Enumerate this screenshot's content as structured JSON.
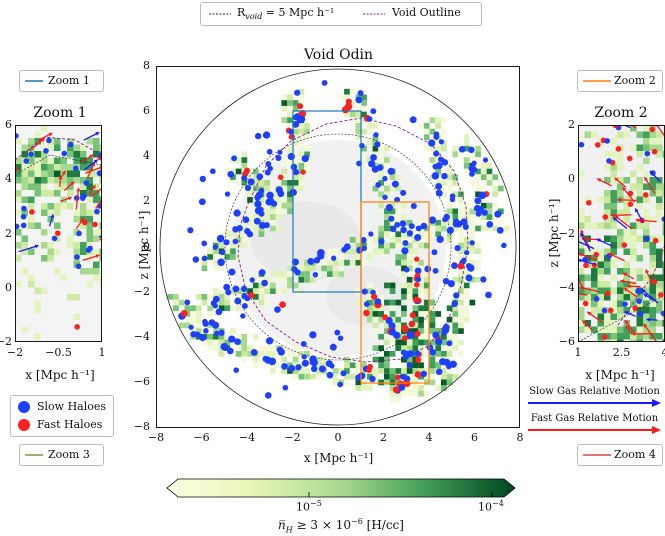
{
  "top_legend": {
    "rvoid_label": "R",
    "rvoid_sub": "void",
    "rvoid_tail": " = 5 Mpc h⁻¹",
    "outline_label": "Void Outline",
    "rvoid_color": "#222222",
    "outline_color": "#8b1a8b"
  },
  "main": {
    "title": "Void Odin",
    "xlabel": "x [Mpc h⁻¹]",
    "ylabel": "z [Mpc h⁻¹]",
    "xticks": [
      "−8",
      "−6",
      "−4",
      "−2",
      "0",
      "2",
      "4",
      "6",
      "8"
    ],
    "yticks": [
      "8",
      "6",
      "4",
      "2",
      "0",
      "−2",
      "−4",
      "−6",
      "−8"
    ]
  },
  "zoom1": {
    "legend_label": "Zoom 1",
    "title": "Zoom 1",
    "xlabel": "x [Mpc h⁻¹]",
    "xticks": [
      "−2",
      "−0.5",
      "1"
    ],
    "yticks": [
      "6",
      "4",
      "2",
      "0",
      "−2"
    ],
    "color": "#1f77b4"
  },
  "zoom2": {
    "legend_label": "Zoom 2",
    "title": "Zoom 2",
    "xlabel": "x [Mpc h⁻¹]",
    "ylabel": "z [Mpc h⁻¹]",
    "xticks": [
      "1",
      "2.5",
      "4"
    ],
    "yticks": [
      "2",
      "0",
      "−2",
      "−4",
      "−6"
    ],
    "color": "#ff7f0e"
  },
  "zoom3": {
    "legend_label": "Zoom 3",
    "color": "#8b8b3a"
  },
  "zoom4": {
    "legend_label": "Zoom 4",
    "color": "#e04040"
  },
  "halo_legend": {
    "slow_label": "Slow Haloes",
    "fast_label": "Fast Haloes",
    "slow_color": "#1f3fff",
    "fast_color": "#ff2020"
  },
  "gas_legend": {
    "slow_label": "Slow Gas Relative Motion",
    "fast_label": "Fast Gas Relative Motion",
    "slow_color": "#1a1aff",
    "fast_color": "#ff1a1a"
  },
  "colorbar": {
    "tick_low": "10",
    "tick_low_exp": "−5",
    "tick_high": "10",
    "tick_high_exp": "−4",
    "label": "n̅",
    "label_sub": "H",
    "label_tail": " ≥ 3 × 10",
    "label_exp": "−6",
    "label_unit": " [H/cc]"
  },
  "chart_data": {
    "type": "heatmap",
    "title": "Void Odin",
    "xlabel": "x [Mpc h^-1]",
    "ylabel": "z [Mpc h^-1]",
    "xlim": [
      -8,
      8
    ],
    "ylim": [
      -8,
      8
    ],
    "void_radius": 5,
    "zoom_boxes": [
      {
        "name": "Zoom 1",
        "x": [
          -2,
          1
        ],
        "z": [
          -2,
          6
        ]
      },
      {
        "name": "Zoom 2",
        "x": [
          1,
          4
        ],
        "z": [
          -6,
          2
        ]
      }
    ],
    "zoom1_limits": {
      "x": [
        -2,
        1
      ],
      "z": [
        -2,
        6
      ]
    },
    "zoom2_limits": {
      "x": [
        1,
        4
      ],
      "z": [
        -6,
        2
      ]
    },
    "colorbar_range": [
      3e-06,
      0.00015
    ],
    "colorbar_ticks": [
      1e-05,
      0.0001
    ]
  }
}
